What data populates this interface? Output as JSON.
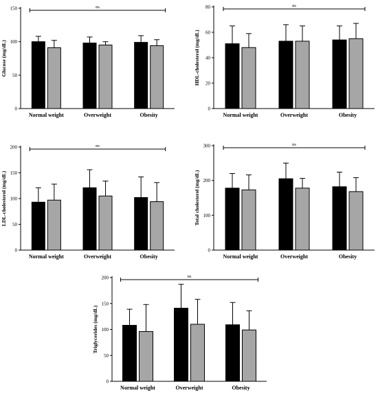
{
  "colors": {
    "series_a": "#000000",
    "series_b": "#a6a6a6",
    "axis": "#000000"
  },
  "chart_data": [
    {
      "type": "bar",
      "categories": [
        "Normal weight",
        "Overweight",
        "Obesity"
      ],
      "ylabel": "Glucose (mg/dL)",
      "ylim": [
        0,
        150
      ],
      "yticks": [
        0,
        50,
        100,
        150
      ],
      "significance": "ns",
      "series": [
        {
          "values": [
            100,
            98,
            99
          ],
          "errors": [
            8,
            9,
            10
          ]
        },
        {
          "values": [
            91,
            95,
            94
          ],
          "errors": [
            11,
            5,
            9
          ]
        }
      ]
    },
    {
      "type": "bar",
      "categories": [
        "Normal weight",
        "Overweight",
        "Obesity"
      ],
      "ylabel": "HDL-cholesterol (mg/dL)",
      "ylim": [
        0,
        80
      ],
      "yticks": [
        0,
        20,
        40,
        60,
        80
      ],
      "significance": "ns",
      "series": [
        {
          "values": [
            51,
            53,
            54
          ],
          "errors": [
            14,
            13,
            11
          ]
        },
        {
          "values": [
            48,
            53,
            55
          ],
          "errors": [
            11,
            12,
            12
          ]
        }
      ]
    },
    {
      "type": "bar",
      "categories": [
        "Normal weight",
        "Overweight",
        "Obesity"
      ],
      "ylabel": "LDL-cholesterol (mg/dL)",
      "ylim": [
        0,
        200
      ],
      "yticks": [
        0,
        50,
        100,
        150,
        200
      ],
      "significance": "ns",
      "series": [
        {
          "values": [
            93,
            121,
            102
          ],
          "errors": [
            28,
            35,
            40
          ]
        },
        {
          "values": [
            97,
            105,
            94
          ],
          "errors": [
            31,
            29,
            37
          ]
        }
      ]
    },
    {
      "type": "bar",
      "categories": [
        "Normal weight",
        "Overweight",
        "Obesity"
      ],
      "ylabel": "Total cholesterol (mg/dL)",
      "ylim": [
        0,
        300
      ],
      "yticks": [
        0,
        100,
        200,
        300
      ],
      "significance": "ns",
      "series": [
        {
          "values": [
            178,
            205,
            182
          ],
          "errors": [
            42,
            45,
            42
          ]
        },
        {
          "values": [
            173,
            178,
            168
          ],
          "errors": [
            43,
            28,
            40
          ]
        }
      ]
    },
    {
      "type": "bar",
      "categories": [
        "Normal weight",
        "Overweight",
        "Obesity"
      ],
      "ylabel": "Triglycerides (mg/dL)",
      "ylim": [
        0,
        200
      ],
      "yticks": [
        0,
        50,
        100,
        150,
        200
      ],
      "significance": "ns",
      "series": [
        {
          "values": [
            108,
            141,
            109
          ],
          "errors": [
            31,
            46,
            43
          ]
        },
        {
          "values": [
            96,
            110,
            99
          ],
          "errors": [
            52,
            48,
            37
          ]
        }
      ]
    }
  ]
}
